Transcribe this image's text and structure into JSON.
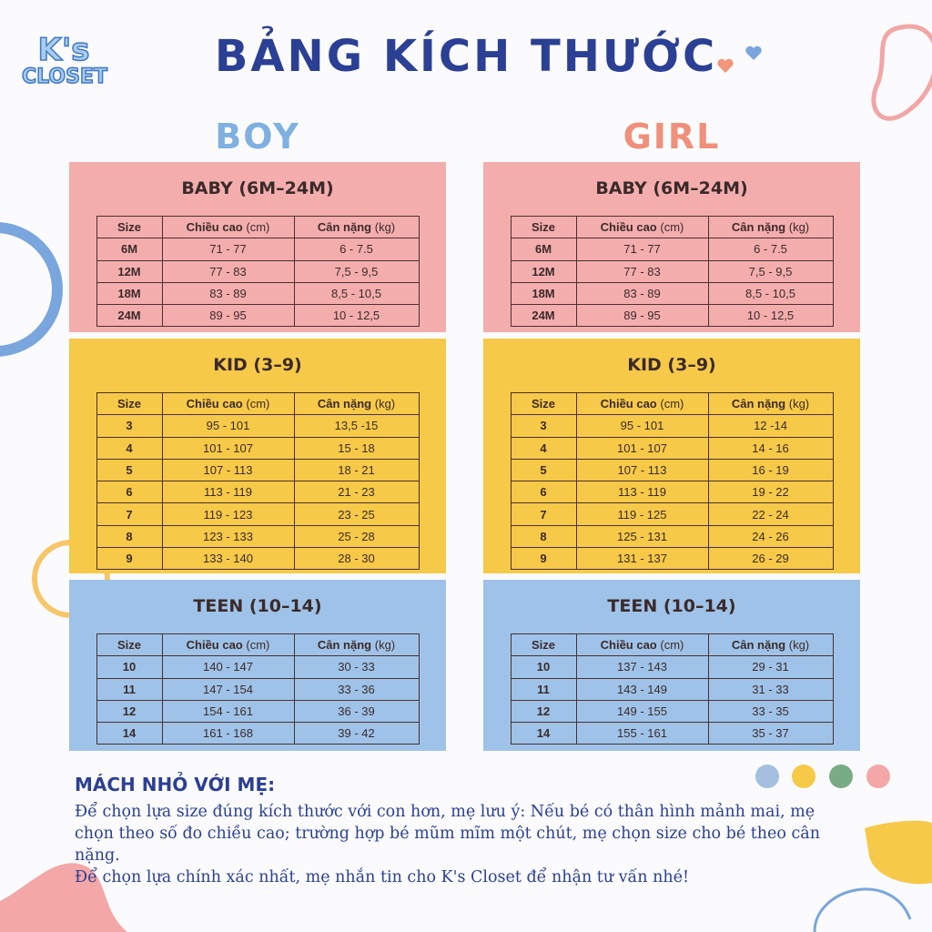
{
  "logo": {
    "line1": "K's",
    "line2": "CLOSET"
  },
  "title": "BẢNG KÍCH THƯỚC",
  "headers": {
    "size": "Size",
    "height": "Chiều cao",
    "height_unit": "(cm)",
    "weight": "Cân nặng",
    "weight_unit": "(kg)"
  },
  "colors": {
    "baby": "#f4adad",
    "kid": "#f7c948",
    "teen": "#9fc3e8",
    "title": "#2b3f94",
    "boy": "#7fb0e0",
    "girl": "#f0907a"
  },
  "boy": {
    "label": "BOY",
    "groups": [
      {
        "title": "BABY (6M–24M)",
        "rows": [
          [
            "6M",
            "71 - 77",
            "6 - 7.5"
          ],
          [
            "12M",
            "77 - 83",
            "7,5 - 9,5"
          ],
          [
            "18M",
            "83 - 89",
            "8,5 - 10,5"
          ],
          [
            "24M",
            "89 - 95",
            "10 - 12,5"
          ]
        ]
      },
      {
        "title": "KID (3–9)",
        "rows": [
          [
            "3",
            "95 - 101",
            "13,5 -15"
          ],
          [
            "4",
            "101 - 107",
            "15 - 18"
          ],
          [
            "5",
            "107 - 113",
            "18 - 21"
          ],
          [
            "6",
            "113 - 119",
            "21 - 23"
          ],
          [
            "7",
            "119 - 123",
            "23 - 25"
          ],
          [
            "8",
            "123 - 133",
            "25 - 28"
          ],
          [
            "9",
            "133 - 140",
            "28 - 30"
          ]
        ]
      },
      {
        "title": "TEEN (10–14)",
        "rows": [
          [
            "10",
            "140 - 147",
            "30 - 33"
          ],
          [
            "11",
            "147 - 154",
            "33 - 36"
          ],
          [
            "12",
            "154 - 161",
            "36 - 39"
          ],
          [
            "14",
            "161 - 168",
            "39 - 42"
          ]
        ]
      }
    ]
  },
  "girl": {
    "label": "GIRL",
    "groups": [
      {
        "title": "BABY (6M–24M)",
        "rows": [
          [
            "6M",
            "71 - 77",
            "6 - 7.5"
          ],
          [
            "12M",
            "77 - 83",
            "7,5 - 9,5"
          ],
          [
            "18M",
            "83 - 89",
            "8,5 - 10,5"
          ],
          [
            "24M",
            "89 - 95",
            "10 - 12,5"
          ]
        ]
      },
      {
        "title": "KID (3–9)",
        "rows": [
          [
            "3",
            "95 - 101",
            "12 -14"
          ],
          [
            "4",
            "101 - 107",
            "14 - 16"
          ],
          [
            "5",
            "107 - 113",
            "16 - 19"
          ],
          [
            "6",
            "113 - 119",
            "19 - 22"
          ],
          [
            "7",
            "119 - 125",
            "22 - 24"
          ],
          [
            "8",
            "125 - 131",
            "24 - 26"
          ],
          [
            "9",
            "131 - 137",
            "26 - 29"
          ]
        ]
      },
      {
        "title": "TEEN (10–14)",
        "rows": [
          [
            "10",
            "137 - 143",
            "29 - 31"
          ],
          [
            "11",
            "143 - 149",
            "31 - 33"
          ],
          [
            "12",
            "149 - 155",
            "33 - 35"
          ],
          [
            "14",
            "155 - 161",
            "35 - 37"
          ]
        ]
      }
    ]
  },
  "tips": {
    "heading": "MÁCH NHỎ VỚI MẸ:",
    "p1": "Để chọn lựa size đúng kích thước với con hơn, mẹ lưu ý: Nếu bé có thân hình mảnh mai, mẹ chọn theo số đo chiều cao; trường hợp bé mũm mĩm một chút, mẹ chọn size cho bé theo cân nặng.",
    "p2": "Để chọn lựa chính xác nhất, mẹ nhắn tin cho K's Closet để nhận tư vấn nhé!"
  }
}
